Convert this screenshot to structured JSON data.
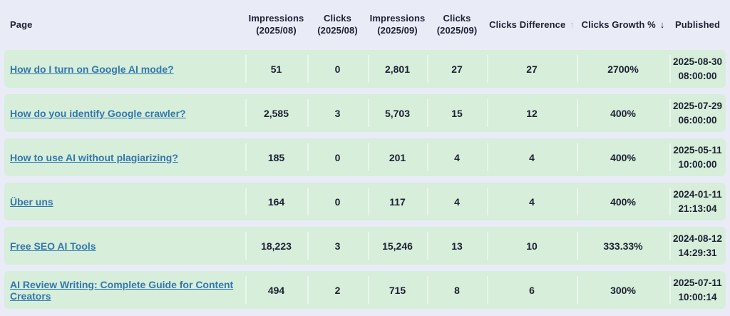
{
  "colors": {
    "page_background": "#e9ecf7",
    "row_background": "#d6eeda",
    "cell_divider": "#e9f6ec",
    "link_blue": "#3377ad",
    "text_dark": "#1c2133",
    "inactive_sort_arrow": "#b7bbc9"
  },
  "header": {
    "columns": [
      {
        "label": "Page"
      },
      {
        "label": "Impressions\n(2025/08)"
      },
      {
        "label": "Clicks\n(2025/08)"
      },
      {
        "label": "Impressions\n(2025/09)"
      },
      {
        "label": "Clicks\n(2025/09)"
      },
      {
        "label": "Clicks Difference",
        "sort_arrow": "↑",
        "sort_state": "inactive"
      },
      {
        "label": "Clicks Growth %",
        "sort_arrow": "↓",
        "sort_state": "active"
      },
      {
        "label": "Published"
      }
    ]
  },
  "rows": [
    {
      "page": "How do I turn on Google AI mode?",
      "impressions_2025_08": "51",
      "clicks_2025_08": "0",
      "impressions_2025_09": "2,801",
      "clicks_2025_09": "27",
      "clicks_difference": "27",
      "clicks_growth_pct": "2700%",
      "published": "2025-08-30 08:00:00"
    },
    {
      "page": "How do you identify Google crawler?",
      "impressions_2025_08": "2,585",
      "clicks_2025_08": "3",
      "impressions_2025_09": "5,703",
      "clicks_2025_09": "15",
      "clicks_difference": "12",
      "clicks_growth_pct": "400%",
      "published": "2025-07-29 06:00:00"
    },
    {
      "page": "How to use AI without plagiarizing?",
      "impressions_2025_08": "185",
      "clicks_2025_08": "0",
      "impressions_2025_09": "201",
      "clicks_2025_09": "4",
      "clicks_difference": "4",
      "clicks_growth_pct": "400%",
      "published": "2025-05-11 10:00:00"
    },
    {
      "page": "Über uns",
      "impressions_2025_08": "164",
      "clicks_2025_08": "0",
      "impressions_2025_09": "117",
      "clicks_2025_09": "4",
      "clicks_difference": "4",
      "clicks_growth_pct": "400%",
      "published": "2024-01-11 21:13:04"
    },
    {
      "page": "Free SEO AI Tools",
      "impressions_2025_08": "18,223",
      "clicks_2025_08": "3",
      "impressions_2025_09": "15,246",
      "clicks_2025_09": "13",
      "clicks_difference": "10",
      "clicks_growth_pct": "333.33%",
      "published": "2024-08-12 14:29:31"
    },
    {
      "page": "AI Review Writing: Complete Guide for Content Creators",
      "impressions_2025_08": "494",
      "clicks_2025_08": "2",
      "impressions_2025_09": "715",
      "clicks_2025_09": "8",
      "clicks_difference": "6",
      "clicks_growth_pct": "300%",
      "published": "2025-07-11 10:00:14"
    }
  ]
}
